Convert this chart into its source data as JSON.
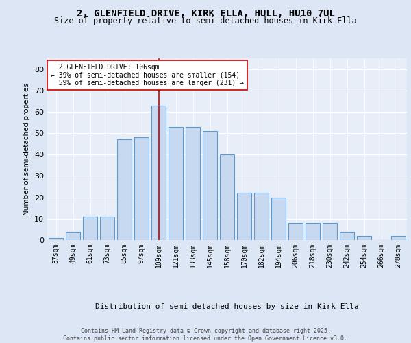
{
  "title_line1": "2, GLENFIELD DRIVE, KIRK ELLA, HULL, HU10 7UL",
  "title_line2": "Size of property relative to semi-detached houses in Kirk Ella",
  "xlabel": "Distribution of semi-detached houses by size in Kirk Ella",
  "ylabel": "Number of semi-detached properties",
  "categories": [
    "37sqm",
    "49sqm",
    "61sqm",
    "73sqm",
    "85sqm",
    "97sqm",
    "109sqm",
    "121sqm",
    "133sqm",
    "145sqm",
    "158sqm",
    "170sqm",
    "182sqm",
    "194sqm",
    "206sqm",
    "218sqm",
    "230sqm",
    "242sqm",
    "254sqm",
    "266sqm",
    "278sqm"
  ],
  "values": [
    1,
    4,
    11,
    11,
    47,
    48,
    63,
    53,
    53,
    51,
    40,
    22,
    22,
    20,
    8,
    8,
    8,
    4,
    2,
    0,
    2
  ],
  "bar_color": "#c6d9f0",
  "bar_edge_color": "#5b9bd5",
  "property_label": "2 GLENFIELD DRIVE: 106sqm",
  "pct_smaller": 39,
  "pct_smaller_count": 154,
  "pct_larger": 59,
  "pct_larger_count": 231,
  "vline_color": "#cc0000",
  "annotation_box_color": "#ffffff",
  "annotation_box_edge_color": "#cc0000",
  "ylim": [
    0,
    85
  ],
  "yticks": [
    0,
    10,
    20,
    30,
    40,
    50,
    60,
    70,
    80
  ],
  "background_color": "#dce6f5",
  "plot_bg_color": "#e8eef8",
  "footer_text": "Contains HM Land Registry data © Crown copyright and database right 2025.\nContains public sector information licensed under the Open Government Licence v3.0.",
  "title_fontsize": 10,
  "subtitle_fontsize": 8.5,
  "bar_width": 0.85,
  "vline_bin_index": 6
}
